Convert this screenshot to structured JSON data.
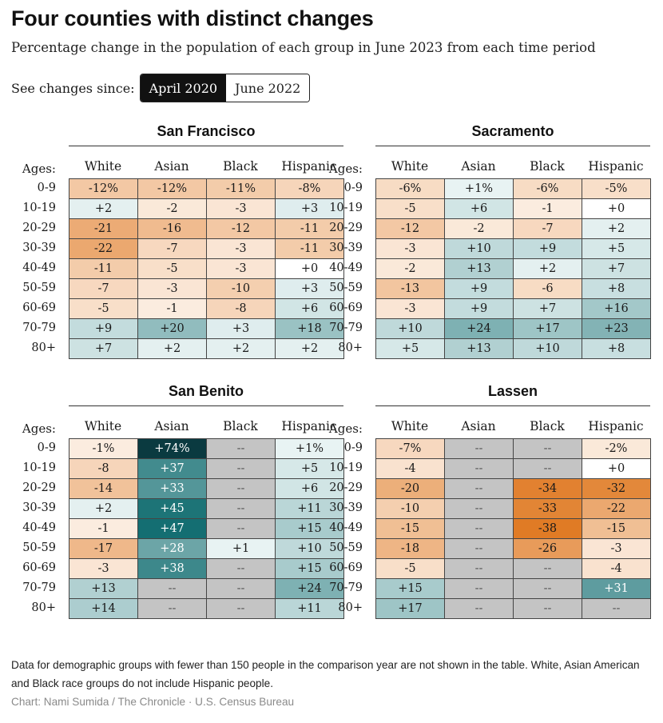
{
  "title": "Four counties with distinct changes",
  "subtitle": "Percentage change in the population of each group in June 2023 from each time period",
  "toggle": {
    "label": "See changes since:",
    "options": [
      "April 2020",
      "June 2022"
    ],
    "selected": "April 2020"
  },
  "note": "Data for demographic groups with fewer than 150 people in the comparison year are not shown in the table. White, Asian American and Black race groups do not include Hispanic people.",
  "credit": "Chart: Nami Sumida / The Chronicle · U.S. Census Bureau",
  "colors": {
    "negative_strong": "#e07b25",
    "negative_light": "#fcefe4",
    "positive_light": "#edf6f6",
    "positive_strong": "#0f6b6f",
    "positive_max": "#0a3a40",
    "missing": "#c4c4c4"
  },
  "chart_data": {
    "type": "heatmap",
    "ages_label": "Ages:",
    "columns": [
      "White",
      "Asian",
      "Black",
      "Hispanic"
    ],
    "age_groups": [
      "0-9",
      "10-19",
      "20-29",
      "30-39",
      "40-49",
      "50-59",
      "60-69",
      "70-79",
      "80+"
    ],
    "missing_marker": "--",
    "panels": [
      {
        "county": "San Francisco",
        "values": [
          [
            "-12%",
            "-12%",
            "-11%",
            "-8%"
          ],
          [
            "+2",
            "-2",
            "-3",
            "+3"
          ],
          [
            "-21",
            "-16",
            "-12",
            "-11"
          ],
          [
            "-22",
            "-7",
            "-3",
            "-11"
          ],
          [
            "-11",
            "-5",
            "-3",
            "+0"
          ],
          [
            "-7",
            "-3",
            "-10",
            "+3"
          ],
          [
            "-5",
            "-1",
            "-8",
            "+6"
          ],
          [
            "+9",
            "+20",
            "+3",
            "+18"
          ],
          [
            "+7",
            "+2",
            "+2",
            "+2"
          ]
        ]
      },
      {
        "county": "Sacramento",
        "values": [
          [
            "-6%",
            "+1%",
            "-6%",
            "-5%"
          ],
          [
            "-5",
            "+6",
            "-1",
            "+0"
          ],
          [
            "-12",
            "-2",
            "-7",
            "+2"
          ],
          [
            "-3",
            "+10",
            "+9",
            "+5"
          ],
          [
            "-2",
            "+13",
            "+2",
            "+7"
          ],
          [
            "-13",
            "+9",
            "-6",
            "+8"
          ],
          [
            "-3",
            "+9",
            "+7",
            "+16"
          ],
          [
            "+10",
            "+24",
            "+17",
            "+23"
          ],
          [
            "+5",
            "+13",
            "+10",
            "+8"
          ]
        ]
      },
      {
        "county": "San Benito",
        "values": [
          [
            "-1%",
            "+74%",
            "--",
            "+1%"
          ],
          [
            "-8",
            "+37",
            "--",
            "+5"
          ],
          [
            "-14",
            "+33",
            "--",
            "+6"
          ],
          [
            "+2",
            "+45",
            "--",
            "+11"
          ],
          [
            "-1",
            "+47",
            "--",
            "+15"
          ],
          [
            "-17",
            "+28",
            "+1",
            "+10"
          ],
          [
            "-3",
            "+38",
            "--",
            "+15"
          ],
          [
            "+13",
            "--",
            "--",
            "+24"
          ],
          [
            "+14",
            "--",
            "--",
            "+11"
          ]
        ]
      },
      {
        "county": "Lassen",
        "values": [
          [
            "-7%",
            "--",
            "--",
            "-2%"
          ],
          [
            "-4",
            "--",
            "--",
            "+0"
          ],
          [
            "-20",
            "--",
            "-34",
            "-32"
          ],
          [
            "-10",
            "--",
            "-33",
            "-22"
          ],
          [
            "-15",
            "--",
            "-38",
            "-15"
          ],
          [
            "-18",
            "--",
            "-26",
            "-3"
          ],
          [
            "-5",
            "--",
            "--",
            "-4"
          ],
          [
            "+15",
            "--",
            "--",
            "+31"
          ],
          [
            "+17",
            "--",
            "--",
            "--"
          ]
        ]
      }
    ]
  }
}
